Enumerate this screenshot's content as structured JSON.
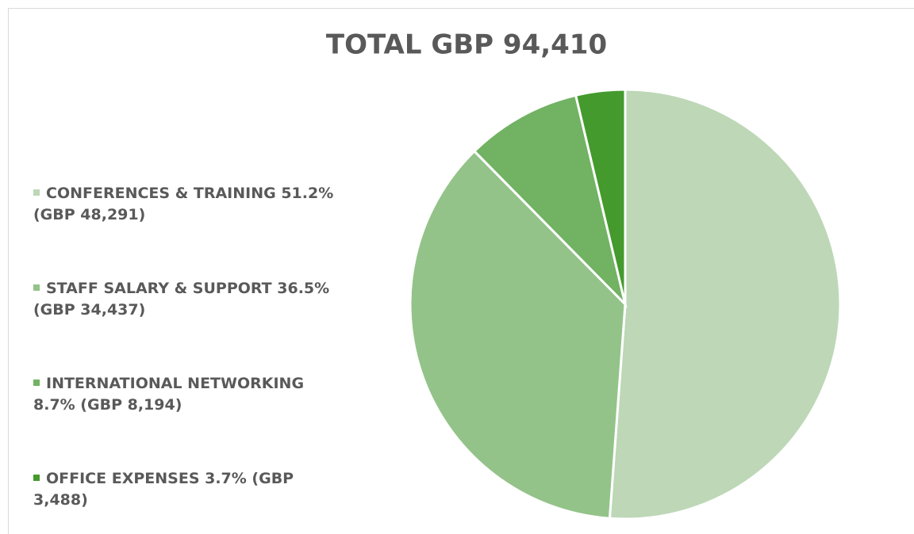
{
  "chart_data": {
    "type": "pie",
    "title": "TOTAL GBP 94,410",
    "categories": [
      "CONFERENCES & TRAINING 51.2% (GBP 48,291)",
      "STAFF SALARY & SUPPORT 36.5% (GBP 34,437)",
      "INTERNATIONAL NETWORKING 8.7% (GBP 8,194)",
      "OFFICE EXPENSES 3.7% (GBP 3,488)"
    ],
    "values": [
      48291,
      34437,
      8194,
      3488
    ],
    "colors": [
      "#bdd7b7",
      "#93c389",
      "#71b263",
      "#449a2d"
    ],
    "legend": "left"
  }
}
